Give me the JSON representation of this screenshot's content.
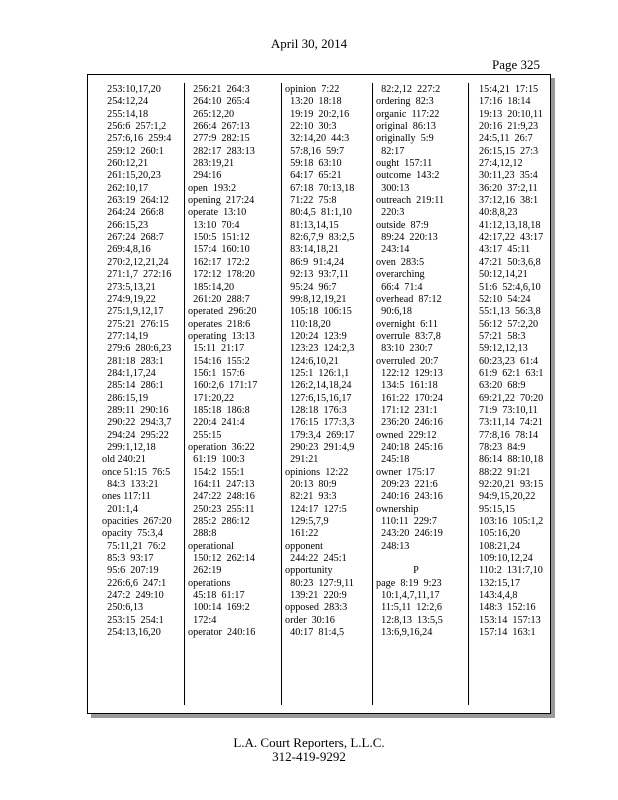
{
  "header": {
    "date": "April 30, 2014",
    "page": "Page 325"
  },
  "footer": {
    "company": "L.A. Court Reporters, L.L.C.",
    "phone": "312-419-9292"
  },
  "columns": [
    [
      "  253:10,17,20",
      "  254:12,24",
      "  255:14,18",
      "  256:6  257:1,2",
      "  257:6,16  259:4",
      "  259:12  260:1",
      "  260:12,21",
      "  261:15,20,23",
      "  262:10,17",
      "  263:19  264:12",
      "  264:24  266:8",
      "  266:15,23",
      "  267:24  268:7",
      "  269:4,8,16",
      "  270:2,12,21,24",
      "  271:1,7  272:16",
      "  273:5,13,21",
      "  274:9,19,22",
      "  275:1,9,12,17",
      "  275:21  276:15",
      "  277:14,19",
      "  279:6  280:6,23",
      "  281:18  283:1",
      "  284:1,17,24",
      "  285:14  286:1",
      "  286:15,19",
      "  289:11  290:16",
      "  290:22  294:3,7",
      "  294:24  295:22",
      "  299:1,12,18",
      "old 240:21",
      "once 51:15  76:5",
      "  84:3  133:21",
      "ones 117:11",
      "  201:1,4",
      "opacities  267:20",
      "opacity  75:3,4",
      "  75:11,21  76:2",
      "  85:3  93:17",
      "  95:6  207:19",
      "  226:6,6  247:1",
      "  247:2  249:10",
      "  250:6,13",
      "  253:15  254:1",
      "  254:13,16,20"
    ],
    [
      "  256:21  264:3",
      "  264:10  265:4",
      "  265:12,20",
      "  266:4  267:13",
      "  277:9  282:15",
      "  282:17  283:13",
      "  283:19,21",
      "  294:16",
      "open  193:2",
      "opening  217:24",
      "operate  13:10",
      "  13:10  70:4",
      "  150:5  151:12",
      "  157:4  160:10",
      "  162:17  172:2",
      "  172:12  178:20",
      "  185:14,20",
      "  261:20  288:7",
      "operated  296:20",
      "operates  218:6",
      "operating  13:13",
      "  15:11  21:17",
      "  154:16  155:2",
      "  156:1  157:6",
      "  160:2,6  171:17",
      "  171:20,22",
      "  185:18  186:8",
      "  220:4  241:4",
      "  255:15",
      "operation  36:22",
      "  61:19  100:3",
      "  154:2  155:1",
      "  164:11  247:13",
      "  247:22  248:16",
      "  250:23  255:11",
      "  285:2  286:12",
      "  288:8",
      "operational",
      "  150:12  262:14",
      "  262:19",
      "operations",
      "  45:18  61:17",
      "  100:14  169:2",
      "  172:4",
      "operator  240:16"
    ],
    [
      "opinion  7:22",
      "  13:20  18:18",
      "  19:19  20:2,16",
      "  22:10  30:3",
      "  32:14,20  44:3",
      "  57:8,16  59:7",
      "  59:18  63:10",
      "  64:17  65:21",
      "  67:18  70:13,18",
      "  71:22  75:8",
      "  80:4,5  81:1,10",
      "  81:13,14,15",
      "  82:6,7,9  83:2,5",
      "  83:14,18,21",
      "  86:9  91:4,24",
      "  92:13  93:7,11",
      "  95:24  96:7",
      "  99:8,12,19,21",
      "  105:18  106:15",
      "  110:18,20",
      "  120:24  123:9",
      "  123:23  124:2,3",
      "  124:6,10,21",
      "  125:1  126:1,1",
      "  126:2,14,18,24",
      "  127:6,15,16,17",
      "  128:18  176:3",
      "  176:15  177:3,3",
      "  179:3,4  269:17",
      "  290:23  291:4,9",
      "  291:21",
      "opinions  12:22",
      "  20:13  80:9",
      "  82:21  93:3",
      "  124:17  127:5",
      "  129:5,7,9",
      "  161:22",
      "opponent",
      "  244:22  245:1",
      "opportunity",
      "  80:23  127:9,11",
      "  139:21  220:9",
      "opposed  283:3",
      "order  30:16",
      "  40:17  81:4,5"
    ],
    [
      "  82:2,12  227:2",
      "ordering  82:3",
      "organic  117:22",
      "original  86:13",
      "originally  5:9",
      "  82:17",
      "ought  157:11",
      "outcome  143:2",
      "  300:13",
      "outreach  219:11",
      "  220:3",
      "outside  87:9",
      "  89:24  220:13",
      "  243:14",
      "oven  283:5",
      "overarching",
      "  66:4  71:4",
      "overhead  87:12",
      "  90:6,18",
      "overnight  6:11",
      "overrule  83:7,8",
      "  83:10  230:7",
      "overruled  20:7",
      "  122:12  129:13",
      "  134:5  161:18",
      "  161:22  170:24",
      "  171:12  231:1",
      "  236:20  246:16",
      "owned  229:12",
      "  240:18  245:16",
      "  245:18",
      "owner  175:17",
      "  209:23  221:6",
      "  240:16  243:16",
      "ownership",
      "  110:11  229:7",
      "  243:20  246:19",
      "  248:13",
      "",
      "P",
      "page  8:19  9:23",
      "  10:1,4,7,11,17",
      "  11:5,11  12:2,6",
      "  12:8,13  13:5,5",
      "  13:6,9,16,24"
    ],
    [
      "15:4,21  17:15",
      "17:16  18:14",
      "19:13  20:10,11",
      "20:16  21:9,23",
      "24:5,11  26:7",
      "26:15,15  27:3",
      "27:4,12,12",
      "30:11,23  35:4",
      "36:20  37:2,11",
      "37:12,16  38:1",
      "40:8,8,23",
      "41:12,13,18,18",
      "42:17,22  43:17",
      "43:17  45:11",
      "47:21  50:3,6,8",
      "50:12,14,21",
      "51:6  52:4,6,10",
      "52:10  54:24",
      "55:1,13  56:3,8",
      "56:12  57:2,20",
      "57:21  58:3",
      "59:12,12,13",
      "60:23,23  61:4",
      "61:9  62:1  63:1",
      "63:20  68:9",
      "69:21,22  70:20",
      "71:9  73:10,11",
      "73:11,14  74:21",
      "77:8,16  78:14",
      "78:23  84:9",
      "86:14  88:10,18",
      "88:22  91:21",
      "92:20,21  93:15",
      "94:9,15,20,22",
      "95:15,15",
      "103:16  105:1,2",
      "105:16,20",
      "108:21,24",
      "109:10,12,24",
      "110:2  131:7,10",
      "132:15,17",
      "143:4,4,8",
      "148:3  152:16",
      "153:14  157:13",
      "157:14  163:1"
    ]
  ]
}
